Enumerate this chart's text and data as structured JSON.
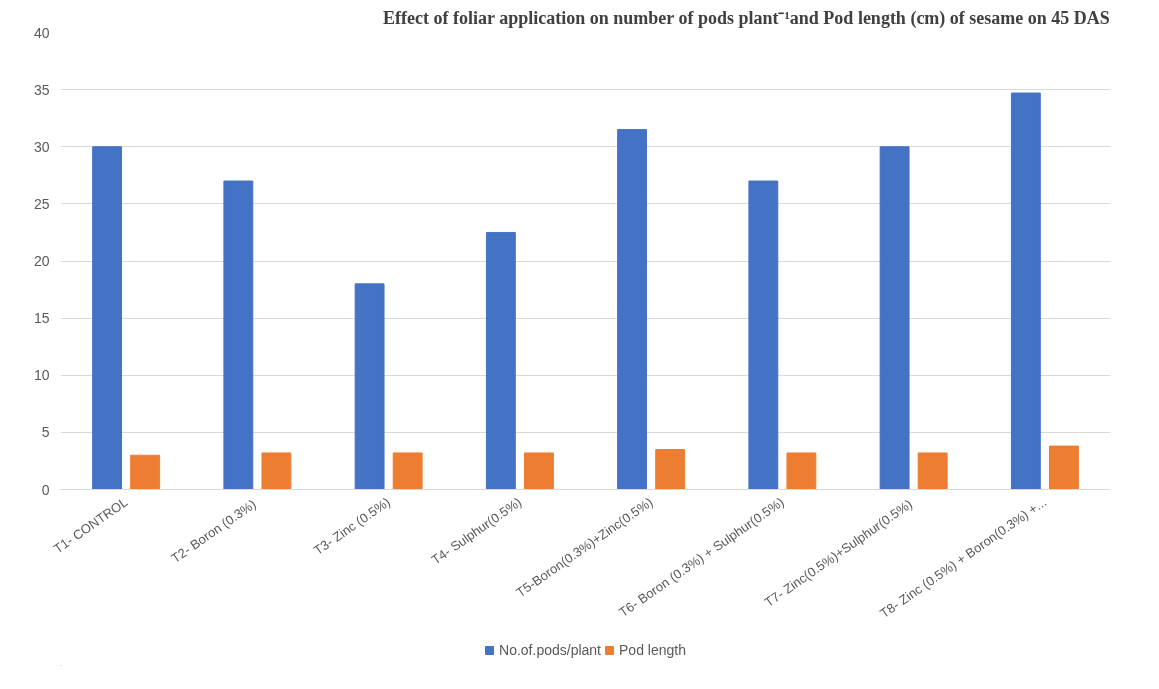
{
  "chart_data": {
    "type": "bar",
    "title": "Effect of foliar application on number of pods plant⁻¹and Pod length (cm) of sesame on 45 DAS",
    "categories": [
      "T1- CONTROL",
      "T2-  Boron (0.3%)",
      "T3- Zinc (0.5%)",
      "T4- Sulphur(0.5%)",
      "T5-Boron(0.3%)+Zinc(0.5%)",
      "T6- Boron (0.3%) + Sulphur(0.5%)",
      "T7-  Zinc(0.5%)+Sulphur(0.5%)",
      "T8- Zinc (0.5%) + Boron(0.3%) +..."
    ],
    "series": [
      {
        "name": "No.of.pods/plant",
        "color": "#4472c4",
        "values": [
          30,
          27,
          18,
          22.5,
          31.5,
          27,
          30,
          34.7
        ]
      },
      {
        "name": "Pod length",
        "color": "#ed7d31",
        "values": [
          3.0,
          3.2,
          3.2,
          3.2,
          3.5,
          3.2,
          3.2,
          3.8
        ]
      }
    ],
    "ylim": [
      0,
      40
    ],
    "yticks": [
      0,
      5,
      10,
      15,
      20,
      25,
      30,
      35,
      40
    ],
    "grid": "y",
    "legend": "bottom"
  }
}
